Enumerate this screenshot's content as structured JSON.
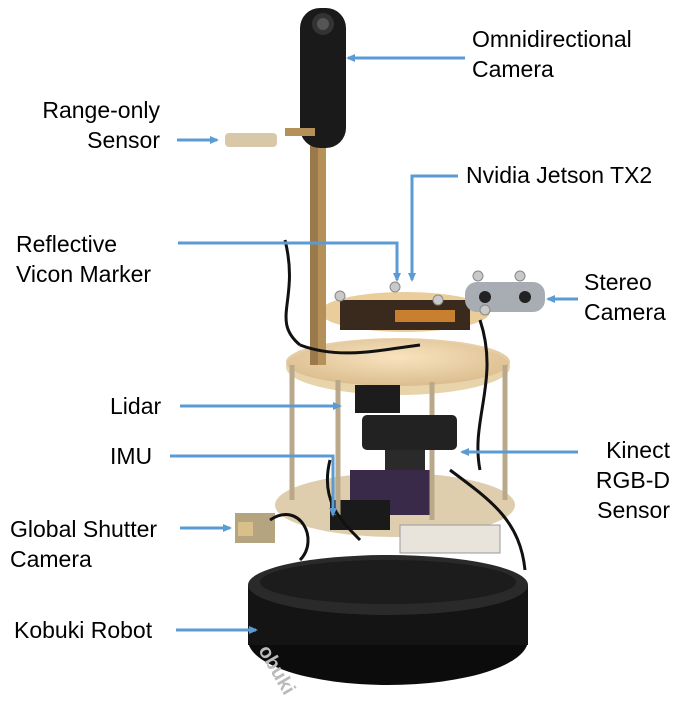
{
  "labels": {
    "omni": [
      "Omnidirectional",
      "Camera"
    ],
    "range": [
      "Range-only",
      "Sensor"
    ],
    "jetson": [
      "Nvidia Jetson TX2"
    ],
    "vicon": [
      "Reflective",
      "Vicon Marker"
    ],
    "stereo": [
      "Stereo",
      "Camera"
    ],
    "lidar": [
      "Lidar"
    ],
    "imu": [
      "IMU"
    ],
    "kinect": [
      "Kinect",
      "RGB-D",
      "Sensor"
    ],
    "global": [
      "Global Shutter",
      "Camera"
    ],
    "kobuki": [
      "Kobuki Robot"
    ]
  },
  "base_text": "obuki",
  "colors": {
    "arrow": "#5b9bd5",
    "text": "#000000",
    "background": "#ffffff"
  }
}
